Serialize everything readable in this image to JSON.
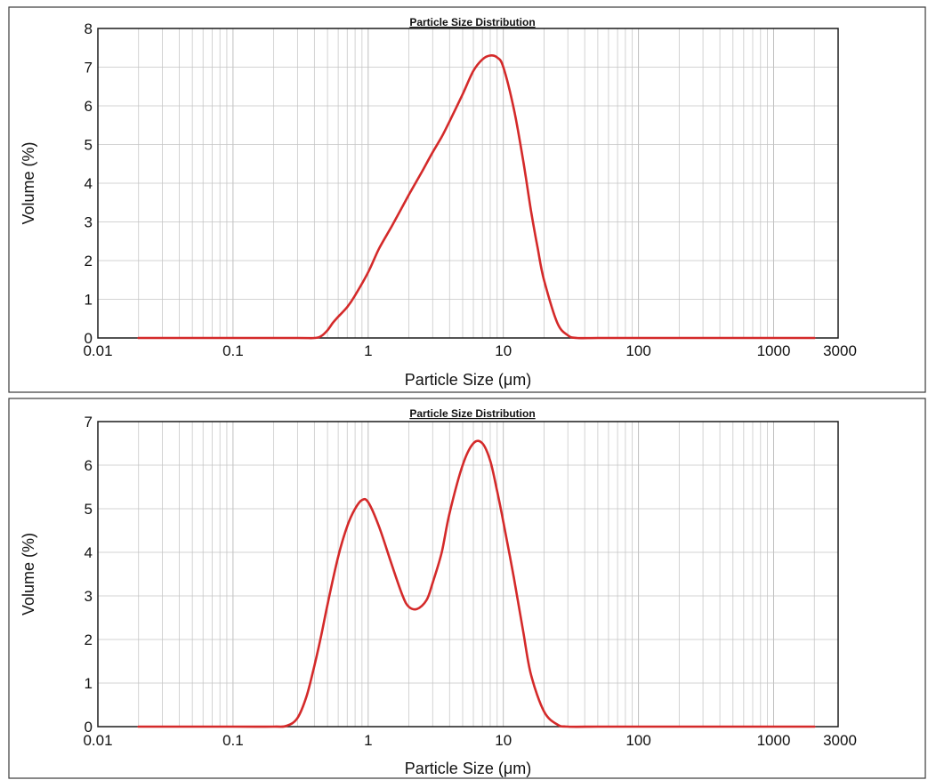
{
  "chart_data": [
    {
      "type": "line",
      "title": "Particle Size Distribution",
      "xlabel": "Particle Size (μm)",
      "ylabel": "Volume (%)",
      "xscale": "log",
      "xlim": [
        0.01,
        3000
      ],
      "ylim": [
        0,
        8
      ],
      "xticks": [
        0.01,
        0.1,
        1,
        10,
        100,
        1000,
        3000
      ],
      "xtick_labels": [
        "0.01",
        "0.1",
        "1",
        "10",
        "100",
        "1000",
        "3000"
      ],
      "yticks": [
        0,
        1,
        2,
        3,
        4,
        5,
        6,
        7,
        8
      ],
      "ytick_labels": [
        "0",
        "1",
        "2",
        "3",
        "4",
        "5",
        "6",
        "7",
        "8"
      ],
      "grid": true,
      "series": [
        {
          "color": "#d42a2a",
          "x": [
            0.02,
            0.1,
            0.3,
            0.4,
            0.45,
            0.5,
            0.55,
            0.6,
            0.7,
            0.8,
            1.0,
            1.2,
            1.5,
            2.0,
            2.5,
            3.0,
            3.5,
            4.0,
            5.0,
            6.0,
            7.0,
            8.0,
            9.0,
            10.0,
            12.0,
            14.0,
            16.0,
            18.0,
            20.0,
            25.0,
            30.0,
            35.0,
            50.0,
            100.0,
            1000.0,
            2000.0
          ],
          "y": [
            0,
            0,
            0,
            0,
            0.05,
            0.2,
            0.4,
            0.55,
            0.8,
            1.1,
            1.7,
            2.3,
            2.9,
            3.7,
            4.3,
            4.8,
            5.2,
            5.6,
            6.3,
            6.9,
            7.2,
            7.3,
            7.25,
            7.0,
            5.9,
            4.6,
            3.3,
            2.3,
            1.5,
            0.4,
            0.07,
            0,
            0,
            0,
            0,
            0
          ]
        }
      ]
    },
    {
      "type": "line",
      "title": "Particle Size Distribution",
      "xlabel": "Particle Size (μm)",
      "ylabel": "Volume (%)",
      "xscale": "log",
      "xlim": [
        0.01,
        3000
      ],
      "ylim": [
        0,
        7
      ],
      "xticks": [
        0.01,
        0.1,
        1,
        10,
        100,
        1000,
        3000
      ],
      "xtick_labels": [
        "0.01",
        "0.1",
        "1",
        "10",
        "100",
        "1000",
        "3000"
      ],
      "yticks": [
        0,
        1,
        2,
        3,
        4,
        5,
        6,
        7
      ],
      "ytick_labels": [
        "0",
        "1",
        "2",
        "3",
        "4",
        "5",
        "6",
        "7"
      ],
      "grid": true,
      "series": [
        {
          "color": "#d42a2a",
          "x": [
            0.02,
            0.1,
            0.2,
            0.25,
            0.3,
            0.35,
            0.4,
            0.45,
            0.5,
            0.6,
            0.7,
            0.8,
            0.9,
            1.0,
            1.2,
            1.5,
            1.8,
            2.0,
            2.3,
            2.7,
            3.0,
            3.5,
            4.0,
            5.0,
            6.0,
            7.0,
            8.0,
            9.0,
            10.0,
            12.0,
            14.0,
            16.0,
            20.0,
            25.0,
            30.0,
            50.0,
            100.0,
            1000.0,
            2000.0
          ],
          "y": [
            0,
            0,
            0,
            0.02,
            0.2,
            0.7,
            1.4,
            2.1,
            2.8,
            3.9,
            4.6,
            5.0,
            5.2,
            5.15,
            4.6,
            3.7,
            3.0,
            2.75,
            2.7,
            2.9,
            3.3,
            4.0,
            4.9,
            6.0,
            6.5,
            6.5,
            6.1,
            5.4,
            4.7,
            3.4,
            2.2,
            1.2,
            0.35,
            0.05,
            0,
            0,
            0,
            0,
            0
          ]
        }
      ]
    }
  ]
}
